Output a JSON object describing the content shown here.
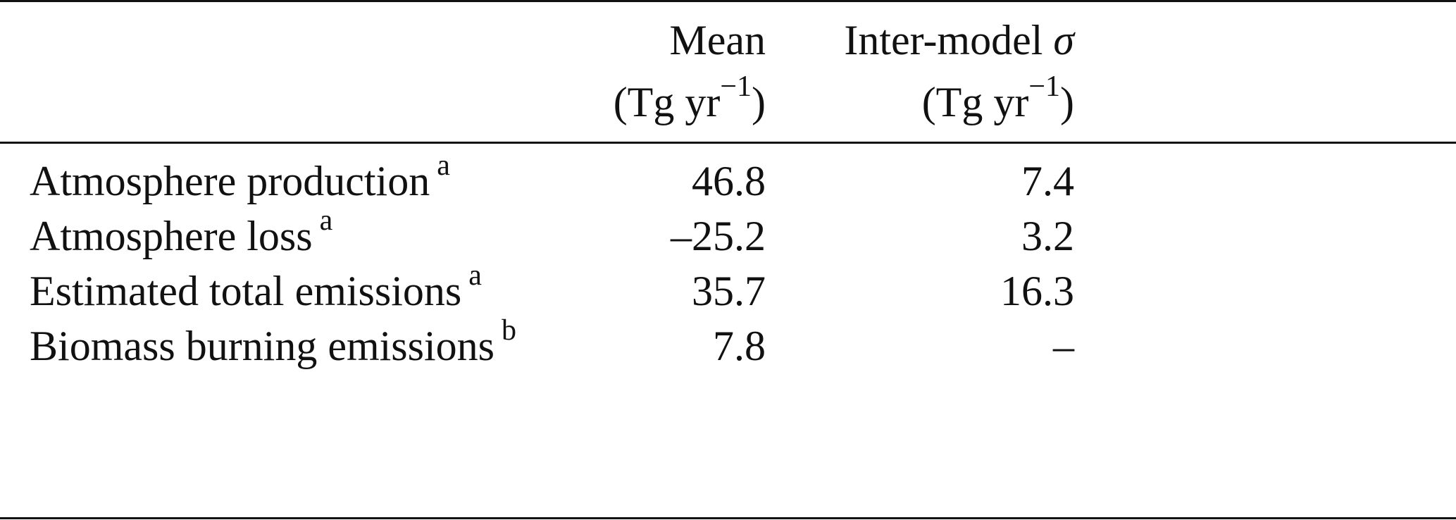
{
  "table": {
    "header": [
      {
        "name": "Mean",
        "unit_prefix": "(Tg yr",
        "unit_exponent": "−1",
        "unit_suffix": ")"
      },
      {
        "name": "Inter-model",
        "symbol": "σ",
        "unit_prefix": "(Tg yr",
        "unit_exponent": "−1",
        "unit_suffix": ")"
      }
    ],
    "rows": [
      {
        "label": "Atmosphere production",
        "note": "a",
        "values": [
          "46.8",
          "7.4"
        ]
      },
      {
        "label": "Atmosphere loss",
        "note": "a",
        "values": [
          "–25.2",
          "3.2"
        ]
      },
      {
        "label": "Estimated total emissions",
        "note": "a",
        "values": [
          "35.7",
          "16.3"
        ]
      },
      {
        "label": "Biomass burning emissions",
        "note": "b",
        "values": [
          "7.8",
          "–"
        ]
      }
    ]
  }
}
